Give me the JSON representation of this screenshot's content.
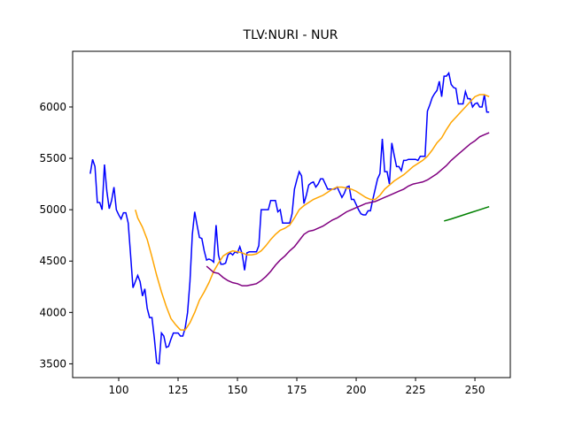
{
  "chart_data": {
    "type": "line",
    "title": "TLV:NURI - NUR",
    "xlim": [
      80.6,
      264.9
    ],
    "xticks": [
      100,
      125,
      150,
      175,
      200,
      225,
      250
    ],
    "ylim": [
      3366,
      6542
    ],
    "yticks": [
      3500,
      4000,
      4500,
      5000,
      5500,
      6000
    ],
    "series": [
      {
        "color": "#0000ff",
        "x": [
          88,
          89,
          90,
          91,
          92,
          93,
          94,
          95,
          96,
          97,
          98,
          99,
          100,
          101,
          102,
          103,
          104,
          105,
          106,
          107,
          108,
          109,
          110,
          111,
          112,
          113,
          114,
          115,
          116,
          117,
          118,
          119,
          120,
          121,
          122,
          123,
          124,
          125,
          126,
          127,
          128,
          129,
          130,
          131,
          132,
          133,
          134,
          135,
          136,
          137,
          138,
          139,
          140,
          141,
          142,
          143,
          144,
          145,
          146,
          147,
          148,
          149,
          150,
          151,
          152,
          153,
          154,
          155,
          156,
          157,
          158,
          159,
          160,
          161,
          162,
          163,
          164,
          165,
          166,
          167,
          168,
          169,
          170,
          171,
          172,
          173,
          174,
          175,
          176,
          177,
          178,
          179,
          180,
          181,
          182,
          183,
          184,
          185,
          186,
          187,
          188,
          189,
          190,
          191,
          192,
          193,
          194,
          195,
          196,
          197,
          198,
          199,
          200,
          201,
          202,
          203,
          204,
          205,
          206,
          207,
          208,
          209,
          210,
          211,
          212,
          213,
          214,
          215,
          216,
          217,
          218,
          219,
          220,
          221,
          222,
          223,
          224,
          225,
          226,
          227,
          228,
          229,
          230,
          231,
          232,
          233,
          234,
          235,
          236,
          237,
          238,
          239,
          240,
          241,
          242,
          243,
          244,
          245,
          246,
          247,
          248,
          249,
          250,
          251,
          252,
          253,
          254,
          255,
          256
        ],
        "values": [
          5350,
          5490,
          5420,
          5070,
          5070,
          5000,
          5440,
          5180,
          5010,
          5090,
          5220,
          5000,
          4950,
          4910,
          4970,
          4970,
          4870,
          4560,
          4240,
          4300,
          4360,
          4300,
          4160,
          4230,
          4040,
          3950,
          3950,
          3750,
          3510,
          3500,
          3800,
          3770,
          3660,
          3670,
          3740,
          3800,
          3800,
          3800,
          3770,
          3770,
          3850,
          4000,
          4300,
          4760,
          4980,
          4850,
          4730,
          4720,
          4600,
          4510,
          4520,
          4510,
          4490,
          4850,
          4560,
          4470,
          4470,
          4480,
          4560,
          4580,
          4560,
          4590,
          4580,
          4640,
          4570,
          4410,
          4580,
          4590,
          4590,
          4590,
          4590,
          4650,
          5000,
          5000,
          5000,
          5000,
          5090,
          5090,
          5090,
          4980,
          5000,
          4870,
          4870,
          4870,
          4870,
          4960,
          5200,
          5290,
          5370,
          5330,
          5060,
          5140,
          5240,
          5260,
          5270,
          5220,
          5250,
          5300,
          5300,
          5250,
          5200,
          5200,
          5200,
          5200,
          5220,
          5170,
          5120,
          5160,
          5220,
          5230,
          5100,
          5100,
          5050,
          5000,
          4960,
          4950,
          4950,
          4990,
          4990,
          5100,
          5200,
          5300,
          5350,
          5690,
          5370,
          5370,
          5250,
          5650,
          5530,
          5420,
          5420,
          5380,
          5480,
          5480,
          5490,
          5490,
          5490,
          5490,
          5480,
          5520,
          5520,
          5520,
          5960,
          6020,
          6090,
          6130,
          6160,
          6250,
          6100,
          6300,
          6300,
          6330,
          6220,
          6190,
          6180,
          6030,
          6030,
          6030,
          6150,
          6080,
          6080,
          6000,
          6030,
          6040,
          6000,
          6000,
          6120,
          5950,
          5950
        ]
      },
      {
        "color": "#ffa500",
        "x": [
          107,
          108,
          110,
          112,
          114,
          116,
          118,
          120,
          122,
          124,
          126,
          128,
          130,
          132,
          134,
          136,
          138,
          140,
          142,
          144,
          146,
          148,
          150,
          152,
          154,
          156,
          158,
          160,
          162,
          164,
          166,
          168,
          170,
          172,
          174,
          176,
          178,
          180,
          182,
          184,
          186,
          188,
          190,
          192,
          194,
          196,
          198,
          200,
          202,
          204,
          206,
          208,
          210,
          212,
          214,
          216,
          218,
          220,
          222,
          224,
          226,
          228,
          230,
          232,
          234,
          236,
          238,
          240,
          242,
          244,
          246,
          248,
          250,
          252,
          254,
          256
        ],
        "values": [
          5000,
          4920,
          4830,
          4710,
          4540,
          4360,
          4200,
          4060,
          3940,
          3880,
          3830,
          3830,
          3900,
          4000,
          4120,
          4200,
          4290,
          4400,
          4480,
          4550,
          4580,
          4600,
          4590,
          4580,
          4560,
          4560,
          4570,
          4600,
          4650,
          4710,
          4760,
          4800,
          4820,
          4850,
          4920,
          5000,
          5040,
          5070,
          5100,
          5120,
          5140,
          5170,
          5200,
          5220,
          5220,
          5210,
          5200,
          5180,
          5150,
          5120,
          5100,
          5100,
          5140,
          5200,
          5240,
          5280,
          5310,
          5340,
          5380,
          5420,
          5450,
          5480,
          5520,
          5580,
          5650,
          5700,
          5780,
          5850,
          5900,
          5950,
          6000,
          6050,
          6100,
          6120,
          6120,
          6100
        ]
      },
      {
        "color": "#800080",
        "x": [
          137,
          140,
          142,
          144,
          146,
          148,
          150,
          152,
          154,
          156,
          158,
          160,
          162,
          164,
          166,
          168,
          170,
          172,
          174,
          176,
          178,
          180,
          182,
          184,
          186,
          188,
          190,
          192,
          194,
          196,
          198,
          200,
          202,
          204,
          206,
          208,
          210,
          212,
          214,
          216,
          218,
          220,
          222,
          224,
          226,
          228,
          230,
          232,
          234,
          236,
          238,
          240,
          242,
          244,
          246,
          248,
          250,
          252,
          254,
          256
        ],
        "values": [
          4450,
          4390,
          4380,
          4340,
          4310,
          4290,
          4280,
          4260,
          4260,
          4270,
          4280,
          4310,
          4350,
          4400,
          4460,
          4510,
          4550,
          4600,
          4640,
          4700,
          4760,
          4790,
          4800,
          4820,
          4840,
          4870,
          4900,
          4920,
          4950,
          4980,
          5000,
          5020,
          5040,
          5060,
          5070,
          5080,
          5100,
          5120,
          5140,
          5160,
          5180,
          5200,
          5230,
          5250,
          5260,
          5270,
          5290,
          5320,
          5350,
          5390,
          5430,
          5480,
          5520,
          5560,
          5600,
          5640,
          5670,
          5710,
          5730,
          5750
        ]
      },
      {
        "color": "#008000",
        "x": [
          237,
          240,
          244,
          248,
          252,
          256
        ],
        "values": [
          4890,
          4910,
          4940,
          4970,
          5000,
          5030
        ]
      }
    ]
  }
}
